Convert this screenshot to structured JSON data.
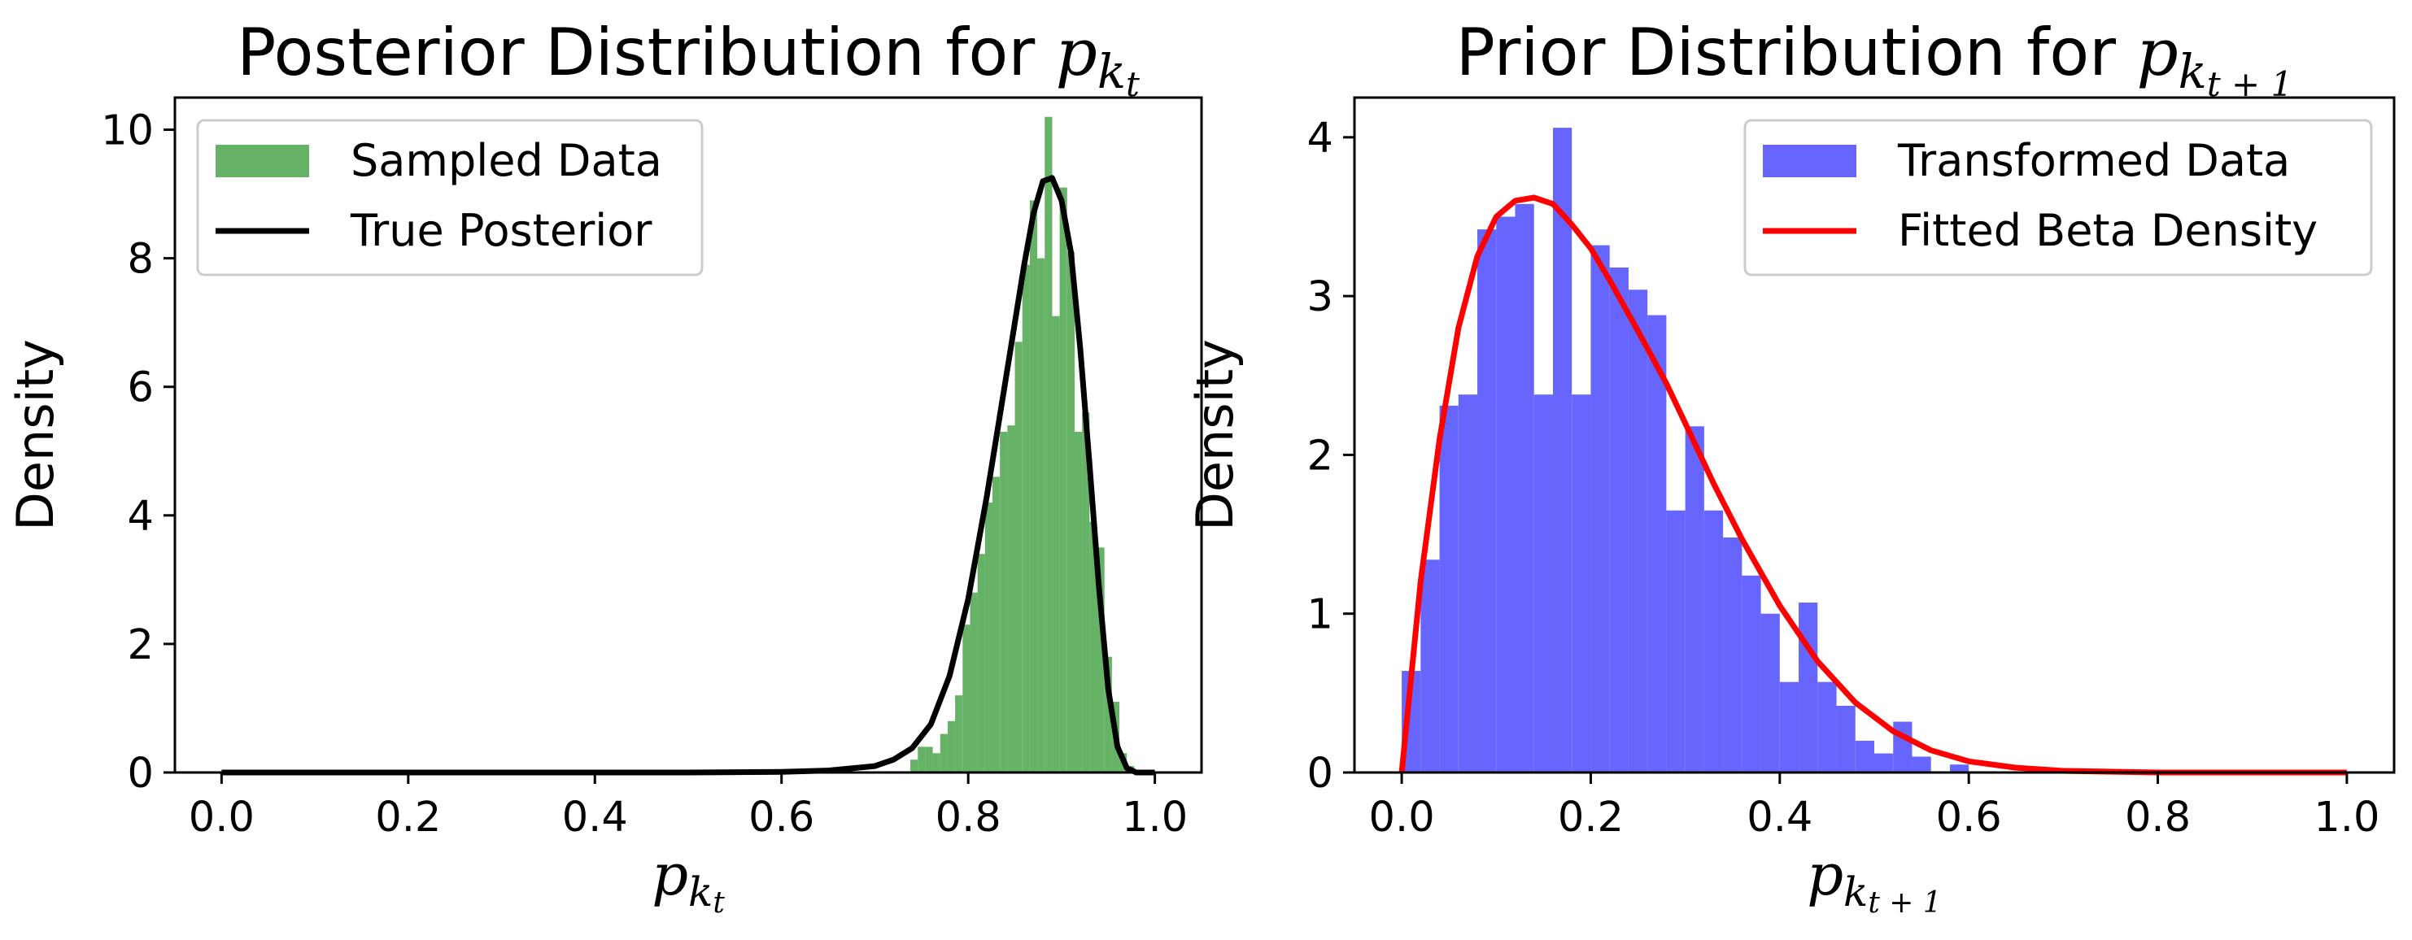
{
  "chart_data": [
    {
      "type": "bar",
      "title": "Posterior Distribution for ",
      "title_math": {
        "base": "p",
        "sub": "k",
        "subsub": "t"
      },
      "xlabel_math": {
        "base": "p",
        "sub": "k",
        "subsub": "t"
      },
      "ylabel": "Density",
      "xlim": [
        -0.05,
        1.05
      ],
      "ylim": [
        0,
        10.5
      ],
      "xticks": [
        "0.0",
        "0.2",
        "0.4",
        "0.6",
        "0.8",
        "1.0"
      ],
      "xtick_values": [
        0,
        0.2,
        0.4,
        0.6,
        0.8,
        1.0
      ],
      "yticks": [
        "0",
        "2",
        "4",
        "6",
        "8",
        "10"
      ],
      "ytick_values": [
        0,
        2,
        4,
        6,
        8,
        10
      ],
      "grid": false,
      "legend_placement": "upper-left",
      "legend": [
        {
          "label": "Sampled Data",
          "kind": "patch"
        },
        {
          "label": "True Posterior",
          "kind": "line"
        }
      ],
      "histogram": {
        "name": "Sampled Data",
        "color": "#66b266",
        "bins": [
          [
            0.738,
            0.746,
            0.2
          ],
          [
            0.746,
            0.754,
            0.4
          ],
          [
            0.754,
            0.762,
            0.4
          ],
          [
            0.762,
            0.77,
            0.3
          ],
          [
            0.77,
            0.778,
            0.6
          ],
          [
            0.778,
            0.786,
            0.8
          ],
          [
            0.786,
            0.794,
            1.2
          ],
          [
            0.794,
            0.802,
            2.3
          ],
          [
            0.802,
            0.81,
            2.8
          ],
          [
            0.81,
            0.818,
            3.4
          ],
          [
            0.818,
            0.826,
            4.2
          ],
          [
            0.826,
            0.834,
            4.6
          ],
          [
            0.834,
            0.842,
            5.3
          ],
          [
            0.842,
            0.85,
            5.4
          ],
          [
            0.85,
            0.858,
            6.7
          ],
          [
            0.858,
            0.866,
            7.9
          ],
          [
            0.866,
            0.874,
            8.9
          ],
          [
            0.874,
            0.882,
            8.0
          ],
          [
            0.882,
            0.89,
            10.2
          ],
          [
            0.89,
            0.898,
            7.1
          ],
          [
            0.898,
            0.906,
            9.1
          ],
          [
            0.906,
            0.914,
            8.1
          ],
          [
            0.914,
            0.922,
            5.3
          ],
          [
            0.922,
            0.93,
            5.6
          ],
          [
            0.93,
            0.938,
            3.9
          ],
          [
            0.938,
            0.946,
            3.5
          ],
          [
            0.946,
            0.954,
            1.8
          ],
          [
            0.954,
            0.962,
            1.1
          ],
          [
            0.962,
            0.97,
            0.3
          ],
          [
            0.97,
            0.978,
            0.1
          ]
        ]
      },
      "line": {
        "name": "True Posterior",
        "color": "#000000",
        "x": [
          0.0,
          0.5,
          0.6,
          0.65,
          0.7,
          0.72,
          0.74,
          0.76,
          0.78,
          0.8,
          0.82,
          0.84,
          0.86,
          0.87,
          0.88,
          0.89,
          0.9,
          0.91,
          0.92,
          0.93,
          0.94,
          0.95,
          0.96,
          0.97,
          0.98,
          1.0
        ],
        "y": [
          0.0,
          0.0,
          0.01,
          0.03,
          0.1,
          0.2,
          0.38,
          0.75,
          1.5,
          2.7,
          4.3,
          6.1,
          7.9,
          8.7,
          9.2,
          9.25,
          8.9,
          8.1,
          6.6,
          4.8,
          2.9,
          1.3,
          0.4,
          0.07,
          0.0,
          0.0
        ]
      }
    },
    {
      "type": "bar",
      "title": "Prior Distribution for ",
      "title_math": {
        "base": "p",
        "sub": "k",
        "subsub": "t + 1"
      },
      "xlabel_math": {
        "base": "p",
        "sub": "k",
        "subsub": "t + 1"
      },
      "ylabel": "Density",
      "xlim": [
        -0.05,
        1.05
      ],
      "ylim": [
        0,
        4.25
      ],
      "xticks": [
        "0.0",
        "0.2",
        "0.4",
        "0.6",
        "0.8",
        "1.0"
      ],
      "xtick_values": [
        0,
        0.2,
        0.4,
        0.6,
        0.8,
        1.0
      ],
      "yticks": [
        "0",
        "1",
        "2",
        "3",
        "4"
      ],
      "ytick_values": [
        0,
        1,
        2,
        3,
        4
      ],
      "grid": false,
      "legend_placement": "upper-right",
      "legend": [
        {
          "label": "Transformed Data",
          "kind": "patch"
        },
        {
          "label": "Fitted Beta Density",
          "kind": "line"
        }
      ],
      "histogram": {
        "name": "Transformed Data",
        "color": "#6666ff",
        "bins": [
          [
            0.0,
            0.02,
            0.64
          ],
          [
            0.02,
            0.04,
            1.34
          ],
          [
            0.04,
            0.06,
            2.31
          ],
          [
            0.06,
            0.08,
            2.38
          ],
          [
            0.08,
            0.1,
            3.42
          ],
          [
            0.1,
            0.12,
            3.5
          ],
          [
            0.12,
            0.14,
            3.58
          ],
          [
            0.14,
            0.16,
            2.38
          ],
          [
            0.16,
            0.18,
            4.06
          ],
          [
            0.18,
            0.2,
            2.38
          ],
          [
            0.2,
            0.22,
            3.32
          ],
          [
            0.22,
            0.24,
            3.18
          ],
          [
            0.24,
            0.26,
            3.04
          ],
          [
            0.26,
            0.28,
            2.88
          ],
          [
            0.28,
            0.3,
            1.65
          ],
          [
            0.3,
            0.32,
            2.18
          ],
          [
            0.32,
            0.34,
            1.65
          ],
          [
            0.34,
            0.36,
            1.48
          ],
          [
            0.36,
            0.38,
            1.24
          ],
          [
            0.38,
            0.4,
            1.0
          ],
          [
            0.4,
            0.42,
            0.57
          ],
          [
            0.42,
            0.44,
            1.07
          ],
          [
            0.44,
            0.46,
            0.57
          ],
          [
            0.46,
            0.48,
            0.42
          ],
          [
            0.48,
            0.5,
            0.2
          ],
          [
            0.5,
            0.52,
            0.12
          ],
          [
            0.52,
            0.54,
            0.32
          ],
          [
            0.54,
            0.56,
            0.1
          ],
          [
            0.56,
            0.58,
            0.0
          ],
          [
            0.58,
            0.6,
            0.05
          ]
        ]
      },
      "line": {
        "name": "Fitted Beta Density",
        "color": "#ff0000",
        "x": [
          0.0,
          0.01,
          0.02,
          0.04,
          0.06,
          0.08,
          0.1,
          0.12,
          0.14,
          0.16,
          0.18,
          0.2,
          0.22,
          0.25,
          0.28,
          0.3,
          0.33,
          0.36,
          0.4,
          0.44,
          0.48,
          0.52,
          0.56,
          0.6,
          0.65,
          0.7,
          0.8,
          0.9,
          1.0
        ],
        "y": [
          0.0,
          0.6,
          1.2,
          2.1,
          2.8,
          3.25,
          3.5,
          3.6,
          3.62,
          3.58,
          3.45,
          3.3,
          3.1,
          2.78,
          2.45,
          2.2,
          1.82,
          1.47,
          1.05,
          0.7,
          0.44,
          0.26,
          0.14,
          0.07,
          0.03,
          0.01,
          0.0,
          0.0,
          0.0
        ]
      }
    }
  ]
}
